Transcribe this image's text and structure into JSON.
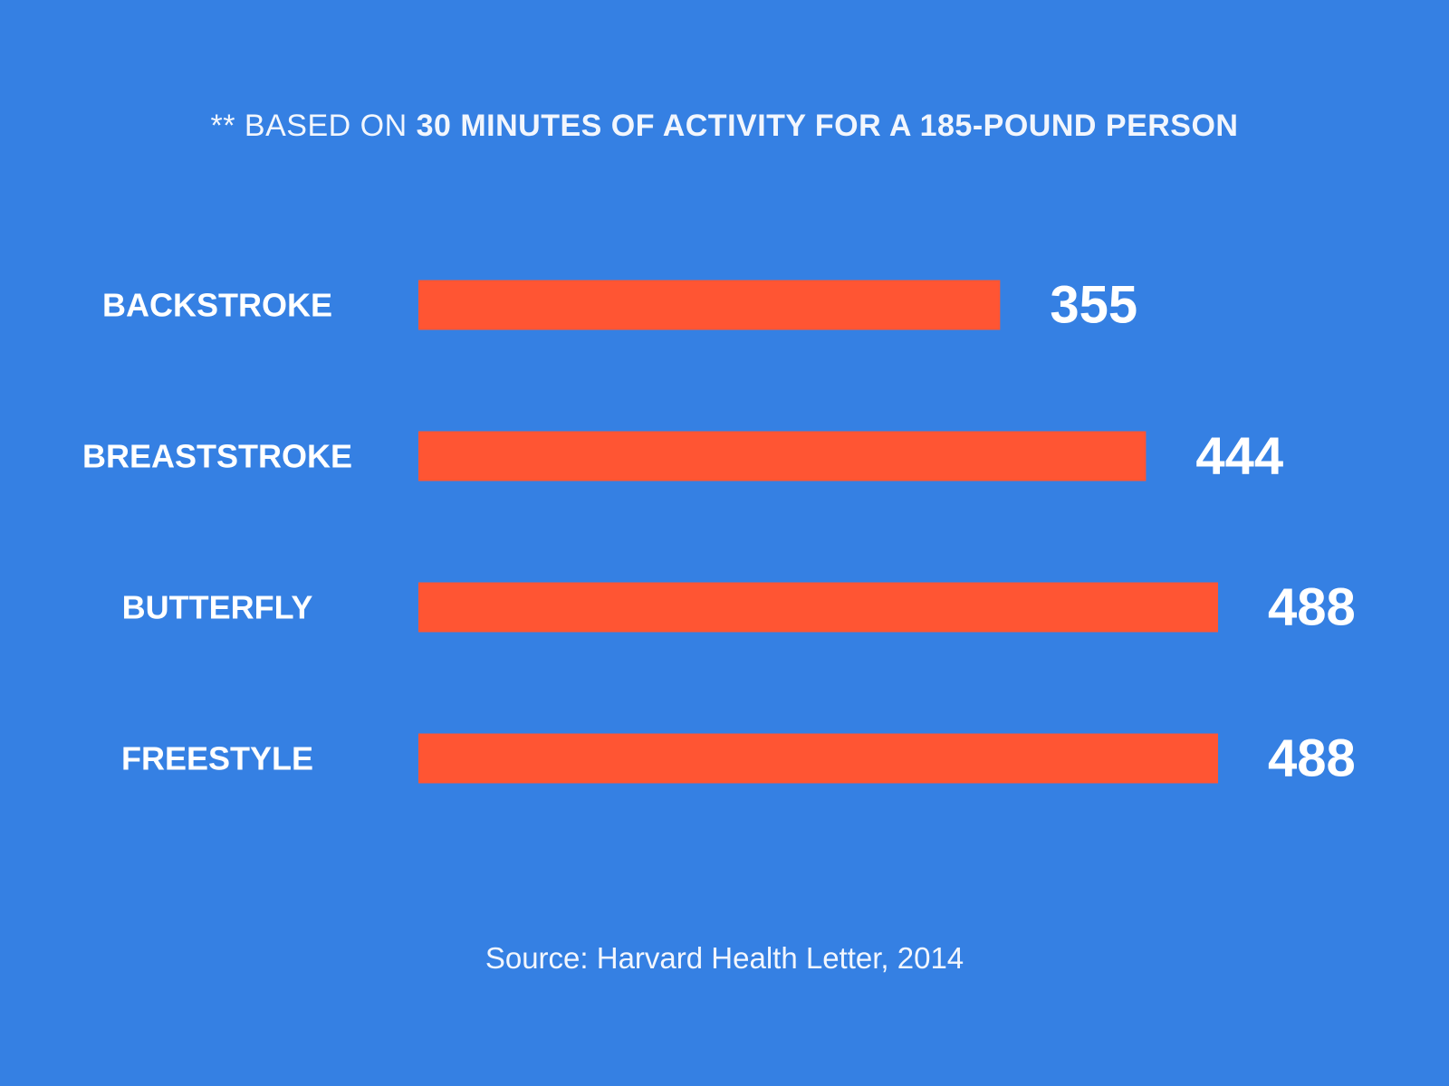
{
  "subtitle": {
    "prefix": "** BASED ON ",
    "emphasis": "30 MINUTES OF ACTIVITY FOR A 185-POUND PERSON"
  },
  "source": "Source: Harvard Health Letter, 2014",
  "colors": {
    "background": "#3580e3",
    "bar": "#ff5533",
    "text": "#ffffff"
  },
  "chart_data": {
    "type": "bar",
    "orientation": "horizontal",
    "categories": [
      "BACKSTROKE",
      "BREASTSTROKE",
      "BUTTERFLY",
      "FREESTYLE"
    ],
    "values": [
      355,
      444,
      488,
      488
    ],
    "data_labels": [
      "355",
      "444",
      "488",
      "488"
    ],
    "title": "",
    "xlabel": "",
    "ylabel": "",
    "xlim": [
      0,
      488
    ],
    "grid": false,
    "legend": "none"
  }
}
